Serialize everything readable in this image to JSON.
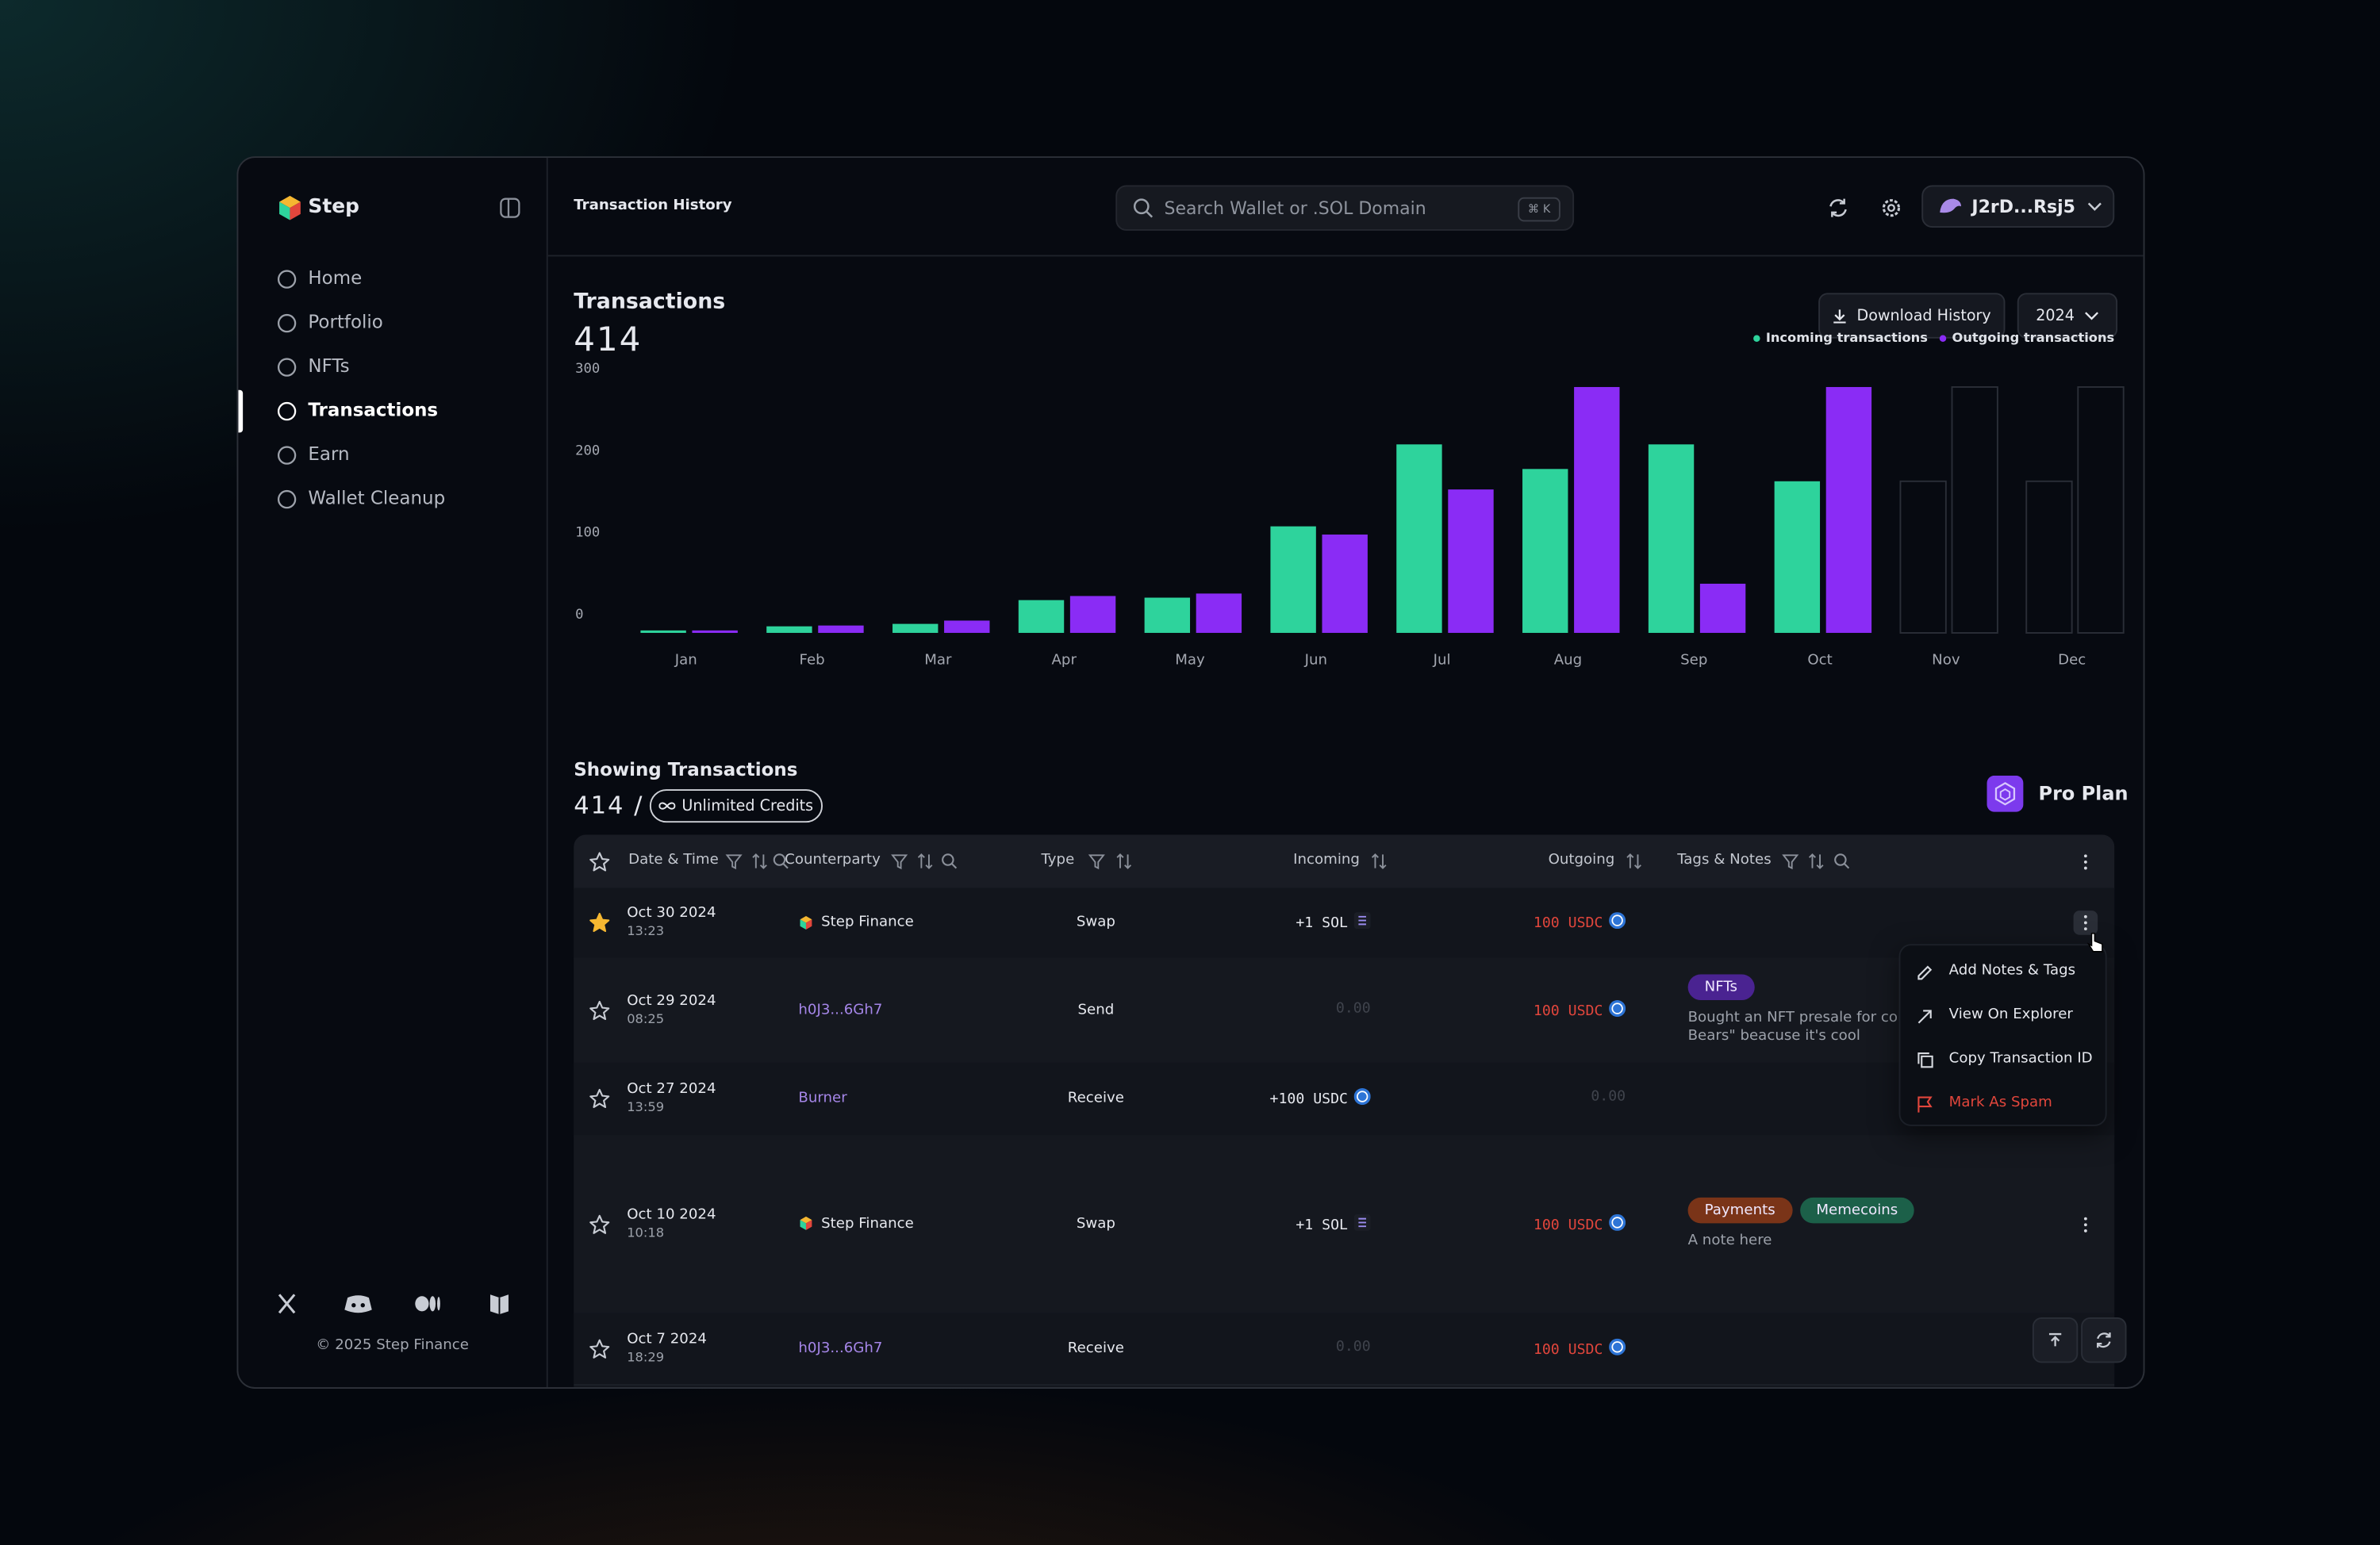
{
  "sidebar": {
    "brand": "Step",
    "nav": [
      "Home",
      "Portfolio",
      "NFTs",
      "Transactions",
      "Earn",
      "Wallet Cleanup"
    ],
    "active_nav": "Transactions",
    "copyright": "© 2025 Step Finance"
  },
  "header": {
    "page_title": "Transaction History",
    "search_placeholder": "Search Wallet or .SOL Domain",
    "shortcut": "⌘ K",
    "wallet": "J2rD...Rsj5"
  },
  "summary": {
    "title": "Transactions",
    "count": 414,
    "download": "Download History",
    "year": "2024"
  },
  "chart_data": {
    "type": "bar",
    "categories": [
      "Jan",
      "Feb",
      "Mar",
      "Apr",
      "May",
      "Jun",
      "Jul",
      "Aug",
      "Sep",
      "Oct",
      "Nov",
      "Dec"
    ],
    "series": [
      {
        "name": "Incoming transactions",
        "color": "#2ed39c",
        "values": [
          3,
          8,
          11,
          40,
          43,
          130,
          230,
          200,
          230,
          185,
          null,
          null
        ]
      },
      {
        "name": "Outgoing transactions",
        "color": "#8a2cf5",
        "values": [
          3,
          9,
          15,
          45,
          48,
          120,
          175,
          300,
          60,
          300,
          null,
          null
        ]
      }
    ],
    "ylim": [
      0,
      300
    ],
    "yticks": [
      0,
      100,
      200,
      300
    ],
    "grid": false,
    "legend": "top-right"
  },
  "showing": {
    "title": "Showing Transactions",
    "count": 414,
    "separator": "/",
    "credits": "Unlimited Credits",
    "plan": "Pro Plan"
  },
  "table": {
    "columns": [
      "Date & Time",
      "Counterparty",
      "Type",
      "Incoming",
      "Outgoing",
      "Tags & Notes"
    ],
    "rows": [
      {
        "starred": true,
        "date": "Oct 30 2024",
        "time": "13:23",
        "counterparty": "Step Finance",
        "counterparty_logo": true,
        "type": "Swap",
        "incoming": "+1 SOL",
        "outgoing": "100 USDC",
        "tags": [],
        "note": [],
        "menu": true
      },
      {
        "starred": false,
        "date": "Oct 29 2024",
        "time": "08:25",
        "counterparty": "h0J3...6Gh7",
        "counterparty_logo": false,
        "type": "Send",
        "incoming": "0.00",
        "outgoing": "100 USDC",
        "tags": [
          {
            "label": "NFTs",
            "color": "#4a2391"
          }
        ],
        "note": [
          "Bought an NFT presale for coll",
          "Bears\" beacuse it's cool"
        ],
        "menu": false
      },
      {
        "starred": false,
        "date": "Oct 27 2024",
        "time": "13:59",
        "counterparty": "Burner",
        "counterparty_logo": false,
        "type": "Receive",
        "incoming": "+100 USDC",
        "outgoing": "0.00",
        "tags": [],
        "note": [],
        "menu": false
      },
      {
        "starred": false,
        "date": "Oct 10 2024",
        "time": "10:18",
        "counterparty": "Step Finance",
        "counterparty_logo": true,
        "type": "Swap",
        "incoming": "+1 SOL",
        "outgoing": "100 USDC",
        "tags": [
          {
            "label": "Payments",
            "color": "#7a3418"
          },
          {
            "label": "Memecoins",
            "color": "#1c6049"
          }
        ],
        "note": [
          "A note here"
        ],
        "menu": true
      },
      {
        "starred": false,
        "date": "Oct 7 2024",
        "time": "18:29",
        "counterparty": "h0J3...6Gh7",
        "counterparty_logo": false,
        "type": "Receive",
        "incoming": "0.00",
        "outgoing": "100 USDC",
        "tags": [],
        "note": [],
        "menu": false
      }
    ]
  },
  "menu": [
    "Add Notes & Tags",
    "View On Explorer",
    "Copy Transaction ID",
    "Mark As Spam"
  ]
}
